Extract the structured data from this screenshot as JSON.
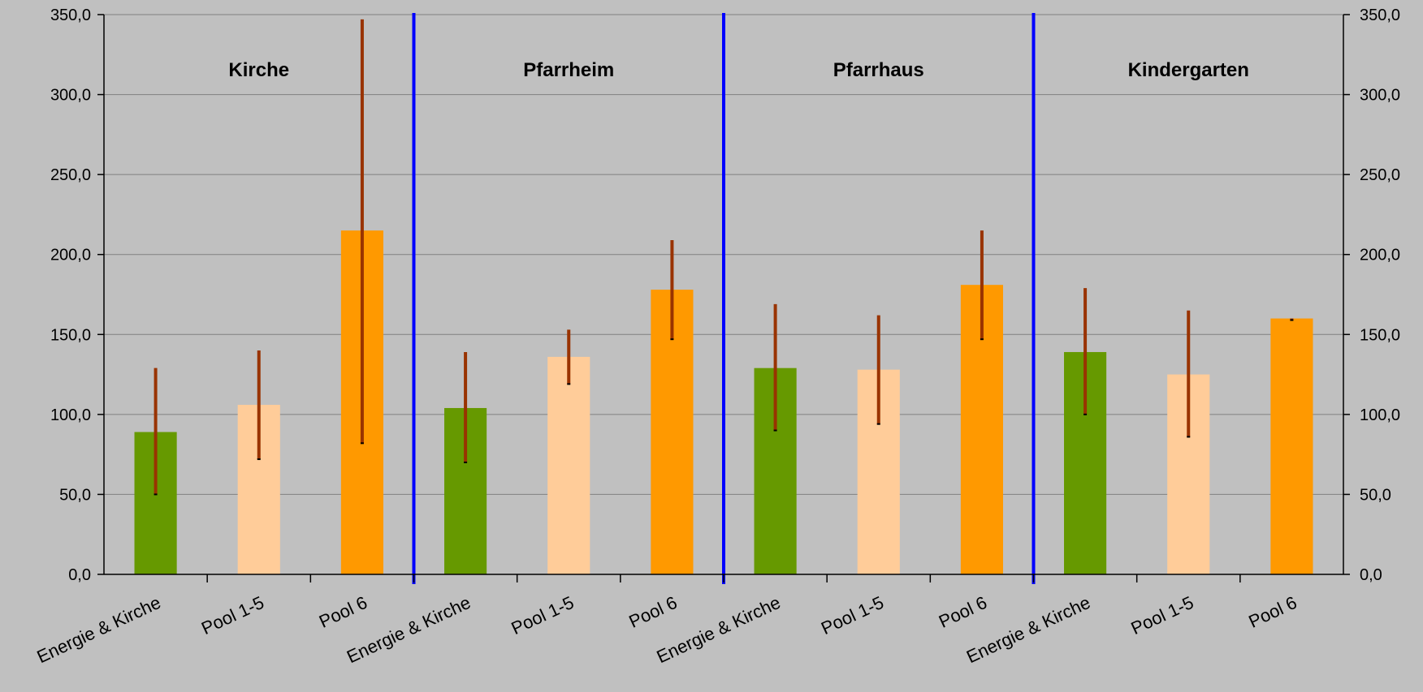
{
  "chart_data": {
    "type": "bar",
    "ylim": [
      0,
      350
    ],
    "yticks": [
      "0,0",
      "50,0",
      "100,0",
      "150,0",
      "200,0",
      "250,0",
      "300,0",
      "350,0"
    ],
    "grid": true,
    "colors": {
      "background": "#c0c0c0",
      "Energie & Kirche": "#669900",
      "Pool 1-5": "#ffcc99",
      "Pool 6": "#ff9900",
      "error_bar": "#993300",
      "separator": "#0000ff"
    },
    "groups": [
      {
        "name": "Kirche",
        "bars": [
          {
            "category": "Energie & Kirche",
            "value": 89,
            "low": 50,
            "high": 129
          },
          {
            "category": "Pool 1-5",
            "value": 106,
            "low": 72,
            "high": 140
          },
          {
            "category": "Pool 6",
            "value": 215,
            "low": 82,
            "high": 347
          }
        ]
      },
      {
        "name": "Pfarrheim",
        "bars": [
          {
            "category": "Energie & Kirche",
            "value": 104,
            "low": 70,
            "high": 139
          },
          {
            "category": "Pool 1-5",
            "value": 136,
            "low": 119,
            "high": 153
          },
          {
            "category": "Pool 6",
            "value": 178,
            "low": 147,
            "high": 209
          }
        ]
      },
      {
        "name": "Pfarrhaus",
        "bars": [
          {
            "category": "Energie & Kirche",
            "value": 129,
            "low": 90,
            "high": 169
          },
          {
            "category": "Pool 1-5",
            "value": 128,
            "low": 94,
            "high": 162
          },
          {
            "category": "Pool 6",
            "value": 181,
            "low": 147,
            "high": 215
          }
        ]
      },
      {
        "name": "Kindergarten",
        "bars": [
          {
            "category": "Energie & Kirche",
            "value": 139,
            "low": 100,
            "high": 179
          },
          {
            "category": "Pool 1-5",
            "value": 125,
            "low": 86,
            "high": 165
          },
          {
            "category": "Pool 6",
            "value": 160,
            "low": 159,
            "high": 160
          }
        ]
      }
    ]
  }
}
